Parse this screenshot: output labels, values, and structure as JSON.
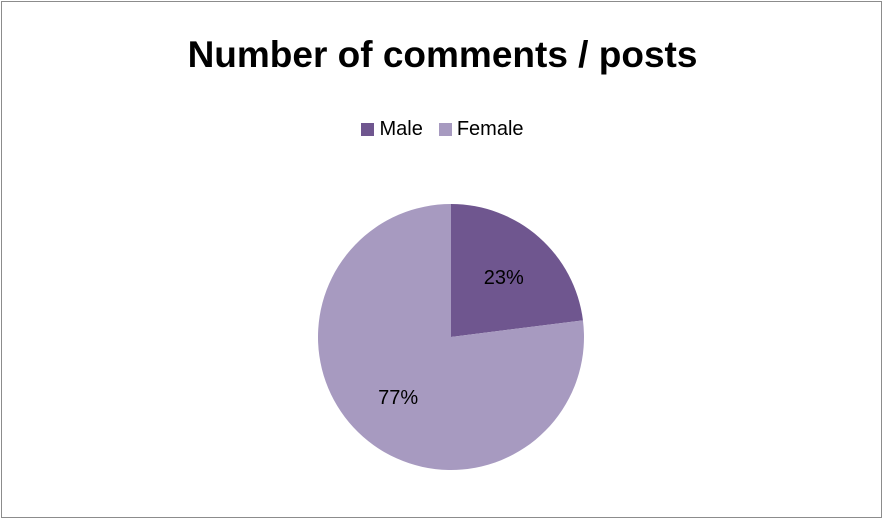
{
  "chart_data": {
    "type": "pie",
    "title": "Number of comments / posts",
    "legend_placement": "top",
    "categories": [
      "Male",
      "Female"
    ],
    "values": [
      23,
      77
    ],
    "data_labels": [
      "23%",
      "77%"
    ],
    "colors": [
      "#6f568f",
      "#a79ac0"
    ]
  }
}
